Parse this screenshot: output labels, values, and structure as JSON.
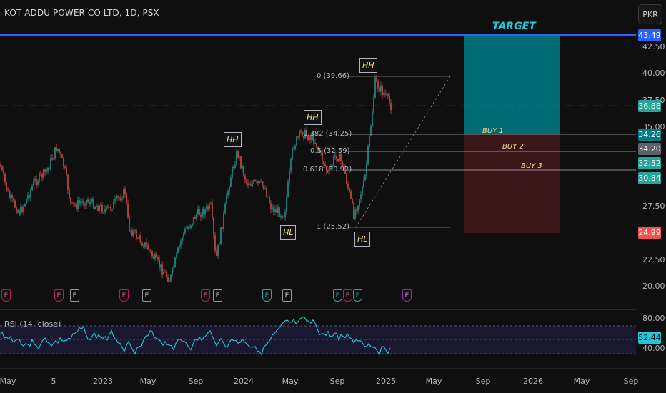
{
  "header": {
    "title": "KOT ADDU POWER CO LTD, 1D, PSX",
    "currency": "PKR"
  },
  "price_axis": {
    "labels": [
      "42.50",
      "40.00",
      "37.50",
      "35.00",
      "27.50",
      "22.50",
      "20.00"
    ],
    "tags": {
      "target": "43.49",
      "current": "36.88",
      "buy1": "34.26",
      "buy2": "34.20",
      "buy3": "32.52",
      "fib618": "30.84",
      "stop": "24.99"
    }
  },
  "rsi_axis": {
    "labels": [
      "80.00",
      "40.00"
    ],
    "value": "52.44"
  },
  "time_axis": [
    "May",
    "5",
    "2023",
    "May",
    "Sep",
    "2024",
    "May",
    "Sep",
    "2025",
    "May",
    "Sep",
    "2026",
    "May",
    "Sep"
  ],
  "fib_levels": [
    "0 (39.66)",
    "0.382 (34.25)",
    "0.5 (32.59)",
    "0.618 (30.92)",
    "1 (25.52)"
  ],
  "swing_labels": [
    "HH",
    "HH",
    "HH",
    "HL",
    "HL"
  ],
  "trade_labels": {
    "target": "TARGET",
    "buy1": "BUY 1",
    "buy2": "BUY 2",
    "buy3": "BUY 3"
  },
  "rsi_label": "RSI (14, close)",
  "events": [
    "E",
    "E",
    "E",
    "E",
    "E",
    "E",
    "E",
    "E",
    "E",
    "E",
    "E",
    "E",
    "E"
  ],
  "colors": {
    "background": "#0f0f0f",
    "target_line": "#2962ff",
    "target_zone": "#006b74",
    "stop_zone": "#3b1619",
    "up": "#26a69a",
    "down": "#ef5350",
    "rsi": "#26c6da"
  }
}
